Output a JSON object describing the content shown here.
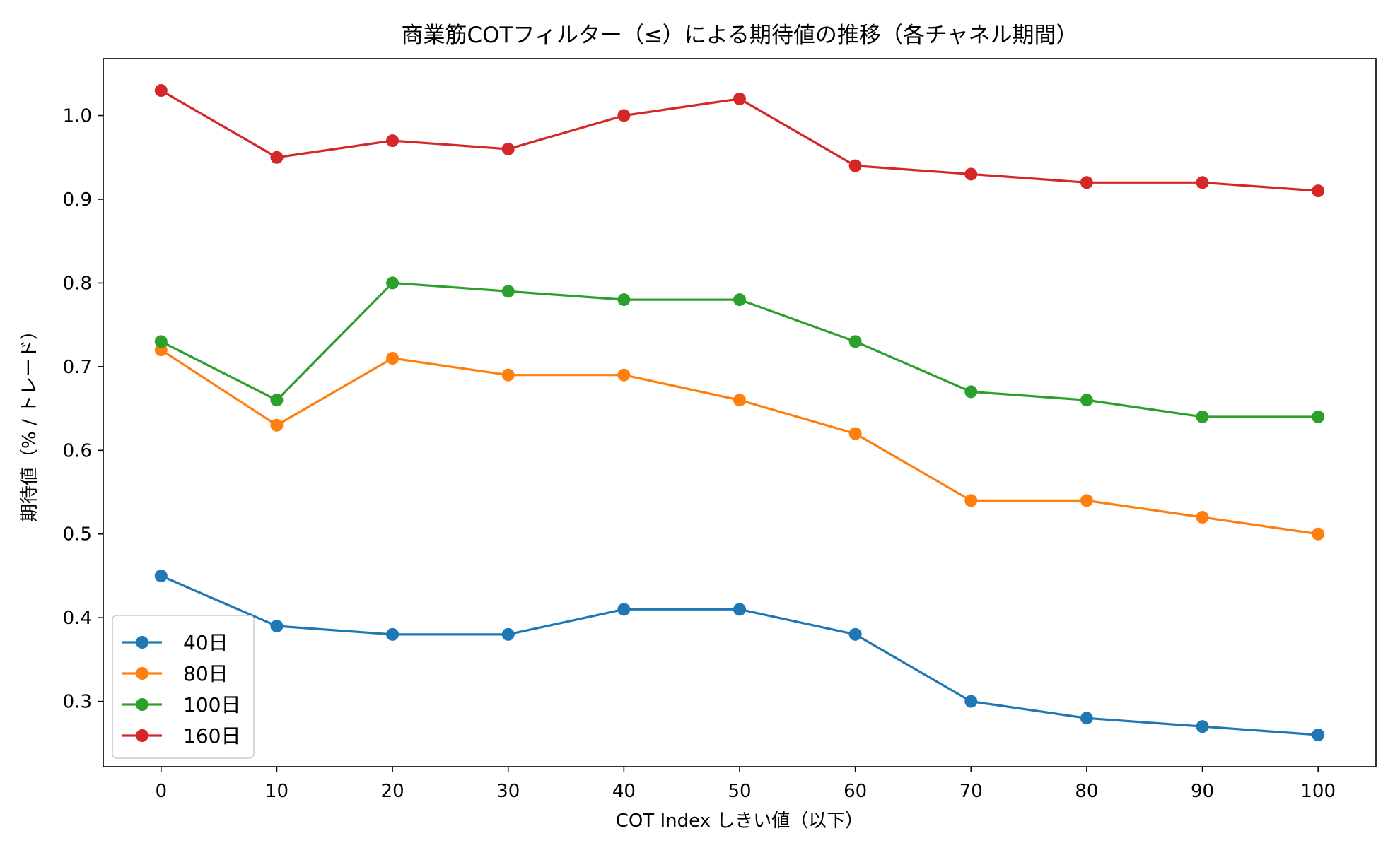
{
  "chart_data": {
    "type": "line",
    "title": "商業筋COTフィルター（≤）による期待値の推移（各チャネル期間）",
    "xlabel": "COT Index しきい値（以下）",
    "ylabel": "期待値（% / トレード）",
    "x": [
      0,
      10,
      20,
      30,
      40,
      50,
      60,
      70,
      80,
      90,
      100
    ],
    "xticks": [
      "0",
      "10",
      "20",
      "30",
      "40",
      "50",
      "60",
      "70",
      "80",
      "90",
      "100"
    ],
    "yticks": [
      "0.3",
      "0.4",
      "0.5",
      "0.6",
      "0.7",
      "0.8",
      "0.9",
      "1.0"
    ],
    "xlim": [
      -5,
      105
    ],
    "ylim": [
      0.222,
      1.068
    ],
    "grid": false,
    "legend_position": "lower-left",
    "series": [
      {
        "name": "40日",
        "color": "#1f77b4",
        "values": [
          0.45,
          0.39,
          0.38,
          0.38,
          0.41,
          0.41,
          0.38,
          0.3,
          0.28,
          0.27,
          0.26
        ]
      },
      {
        "name": "80日",
        "color": "#ff7f0e",
        "values": [
          0.72,
          0.63,
          0.71,
          0.69,
          0.69,
          0.66,
          0.62,
          0.54,
          0.54,
          0.52,
          0.5
        ]
      },
      {
        "name": "100日",
        "color": "#2ca02c",
        "values": [
          0.73,
          0.66,
          0.8,
          0.79,
          0.78,
          0.78,
          0.73,
          0.67,
          0.66,
          0.64,
          0.64
        ]
      },
      {
        "name": "160日",
        "color": "#d62728",
        "values": [
          1.03,
          0.95,
          0.97,
          0.96,
          1.0,
          1.02,
          0.94,
          0.93,
          0.92,
          0.92,
          0.91
        ]
      }
    ]
  }
}
